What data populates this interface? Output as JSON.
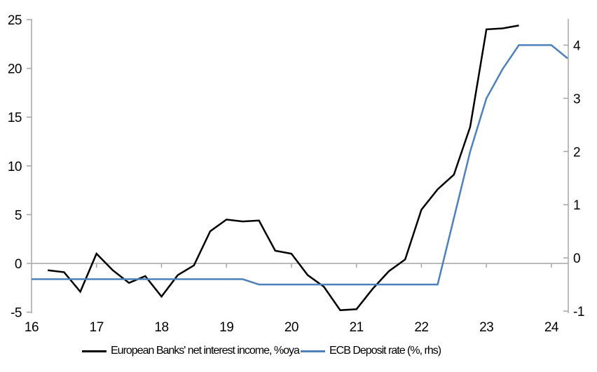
{
  "chart_data": {
    "type": "line",
    "title": "",
    "x_axis": {
      "tick_labels": [
        "16",
        "17",
        "18",
        "19",
        "20",
        "21",
        "22",
        "23",
        "24"
      ],
      "tick_values": [
        16,
        17,
        18,
        19,
        20,
        21,
        22,
        23,
        24
      ],
      "range": [
        16,
        24.26
      ],
      "axis_at_zero": true
    },
    "left_axis": {
      "tick_labels": [
        "25",
        "20",
        "15",
        "10",
        "5",
        "0",
        "-5"
      ],
      "tick_values": [
        25,
        20,
        15,
        10,
        5,
        0,
        -5
      ],
      "range": [
        -5,
        25
      ]
    },
    "right_axis": {
      "tick_labels": [
        "4",
        "3",
        "2",
        "1",
        "0",
        "-1"
      ],
      "tick_values": [
        4,
        3,
        2,
        1,
        0,
        -1
      ],
      "range": [
        -1.02,
        4.48
      ]
    },
    "grid": "zero-line-only",
    "legend_position": "bottom",
    "series": [
      {
        "name": "European Banks' net interest income, %oya",
        "axis": "left",
        "color": "#000000",
        "x": [
          16.25,
          16.5,
          16.75,
          17,
          17.25,
          17.5,
          17.75,
          18,
          18.25,
          18.5,
          18.75,
          19,
          19.25,
          19.5,
          19.75,
          20,
          20.25,
          20.5,
          20.75,
          21,
          21.25,
          21.5,
          21.75,
          22,
          22.25,
          22.5,
          22.75,
          23,
          23.25,
          23.5
        ],
        "values": [
          -0.7,
          -0.9,
          -2.9,
          1.0,
          -0.7,
          -2.0,
          -1.3,
          -3.4,
          -1.2,
          -0.2,
          3.3,
          4.5,
          4.3,
          4.4,
          1.3,
          1.0,
          -1.2,
          -2.4,
          -4.8,
          -4.7,
          -2.6,
          -0.8,
          0.4,
          5.5,
          7.6,
          9.1,
          14.0,
          24.0,
          24.1,
          24.4
        ]
      },
      {
        "name": "ECB Deposit rate (%, rhs)",
        "axis": "right",
        "color": "#4E81BC",
        "x": [
          16,
          16.25,
          16.5,
          16.75,
          17,
          17.25,
          17.5,
          17.75,
          18,
          18.25,
          18.5,
          18.75,
          19,
          19.25,
          19.5,
          19.75,
          20,
          20.25,
          20.5,
          20.75,
          21,
          21.25,
          21.5,
          21.75,
          22,
          22.25,
          22.5,
          22.75,
          23,
          23.25,
          23.5,
          23.75,
          24,
          24.25
        ],
        "values": [
          -0.4,
          -0.4,
          -0.4,
          -0.4,
          -0.4,
          -0.4,
          -0.4,
          -0.4,
          -0.4,
          -0.4,
          -0.4,
          -0.4,
          -0.4,
          -0.4,
          -0.5,
          -0.5,
          -0.5,
          -0.5,
          -0.5,
          -0.5,
          -0.5,
          -0.5,
          -0.5,
          -0.5,
          -0.5,
          -0.5,
          0.75,
          2.0,
          3.0,
          3.55,
          4.0,
          4.0,
          4.0,
          3.75
        ]
      }
    ]
  },
  "style": {
    "axis_color": "#A6A6A6",
    "background": "#FFFFFF",
    "text_color": "#000000"
  }
}
